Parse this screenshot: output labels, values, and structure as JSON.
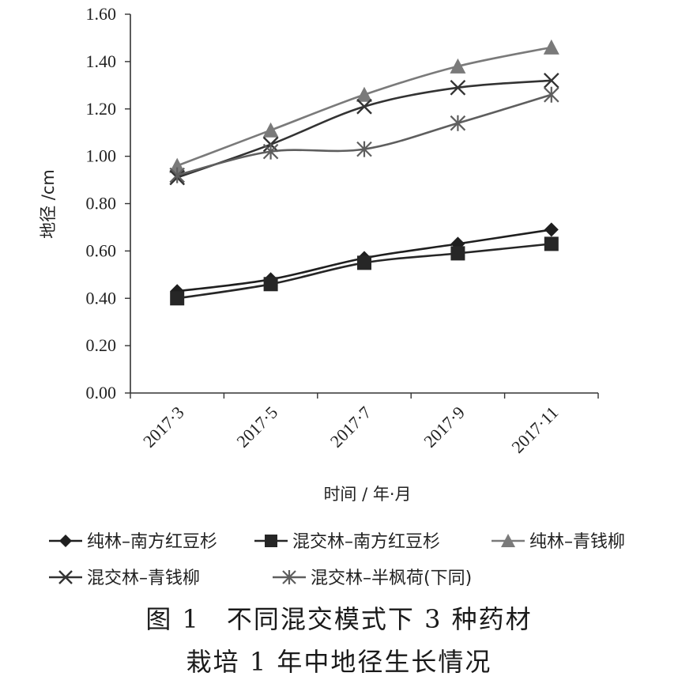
{
  "chart_data": {
    "type": "line",
    "ylabel": "地径 /cm",
    "xlabel": "时间 / 年·月",
    "categories": [
      "2017·3",
      "2017·5",
      "2017·7",
      "2017·9",
      "2017·11"
    ],
    "y_ticks": [
      "0.00",
      "0.20",
      "0.40",
      "0.60",
      "0.80",
      "1.00",
      "1.20",
      "1.40",
      "1.60"
    ],
    "ylim": [
      0,
      1.6
    ],
    "grid": false,
    "legend_position": "bottom",
    "series": [
      {
        "name": "纯林–南方红豆杉",
        "marker": "diamond",
        "color": "#1f1f1f",
        "values": [
          0.43,
          0.48,
          0.57,
          0.63,
          0.69
        ]
      },
      {
        "name": "混交林–南方红豆杉",
        "marker": "square",
        "color": "#262626",
        "values": [
          0.4,
          0.46,
          0.55,
          0.59,
          0.63
        ]
      },
      {
        "name": "纯林–青钱柳",
        "marker": "triangle",
        "color": "#7a7a7a",
        "values": [
          0.96,
          1.11,
          1.26,
          1.38,
          1.46
        ]
      },
      {
        "name": "混交林–青钱柳",
        "marker": "x",
        "color": "#333333",
        "values": [
          0.91,
          1.05,
          1.21,
          1.29,
          1.32
        ]
      },
      {
        "name": "混交林–半枫荷(下同)",
        "marker": "asterisk",
        "color": "#5e5e5e",
        "values": [
          0.92,
          1.02,
          1.03,
          1.14,
          1.26
        ]
      }
    ]
  },
  "caption": {
    "line1": "图 1　不同混交模式下 3 种药材",
    "line2": "栽培 1 年中地径生长情况"
  }
}
